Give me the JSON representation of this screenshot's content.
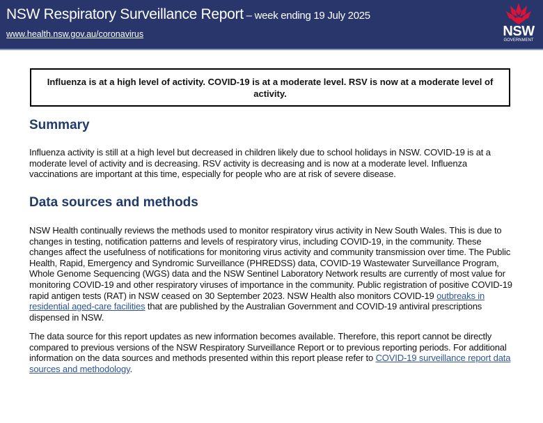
{
  "header": {
    "title": "NSW Respiratory Surveillance Report",
    "subtitle": " – week ending 19 July 2025",
    "url": "www.health.nsw.gov.au/coronavirus",
    "logo_text": "NSW",
    "logo_subtext": "GOVERNMENT",
    "brand_color": "#28366b",
    "logo_color": "#d7153a"
  },
  "banner": "Influenza is at a high level of activity. COVID-19 is at a moderate level. RSV is now at a moderate level of activity.",
  "summary": {
    "heading": "Summary",
    "text": "Influenza activity is still at a high level but decreased in children likely due to school holidays in NSW. COVID-19 is at a moderate level of activity and is decreasing. RSV activity is decreasing and is now at a moderate level. Influenza vaccinations are important at this time, especially for people who are at risk of severe disease."
  },
  "methods": {
    "heading": "Data sources and methods",
    "p1_a": "NSW Health continually reviews the methods used to monitor respiratory virus activity in New South Wales. This is due to changes in testing, notification patterns and levels of respiratory virus, including COVID-19, in the community. These changes affect the usefulness of notifications for monitoring virus activity and community transmission over time. The Public Health, Rapid, Emergency and Syndromic Surveillance (PHREDSS) data, COVID-19 Wastewater Surveillance Program, Whole Genome Sequencing (WGS) data and the NSW Sentinel Laboratory Network results are currently of most value for monitoring COVID-19 and other respiratory viruses of importance in the community. Public registration of positive COVID-19 rapid antigen tests (RAT) in NSW ceased on 30 September 2023. NSW Health also monitors COVID-19 ",
    "p1_link": "outbreaks in residential aged-care facilities",
    "p1_b": " that are published by the Australian Government and COVID-19 antiviral prescriptions dispensed in NSW.",
    "p2_a": "The data source for this report updates as new information becomes available. Therefore, this report cannot be directly compared to previous versions of the NSW Respiratory Surveillance Report or to previous reporting periods. For additional information on the data sources and methods presented within this report please refer to ",
    "p2_link": "COVID-19 surveillance report data sources and methodology",
    "p2_b": "."
  }
}
